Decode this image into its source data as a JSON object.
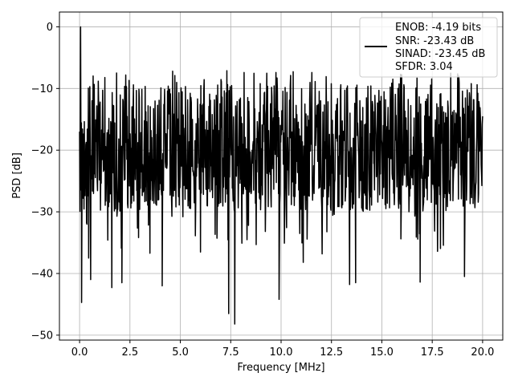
{
  "chart_data": {
    "type": "line",
    "title": "",
    "xlabel": "Frequency [MHz]",
    "ylabel": "PSD [dB]",
    "xlim": [
      -1.0,
      21.0
    ],
    "ylim": [
      -50.8,
      2.4
    ],
    "xticks": [
      0.0,
      2.5,
      5.0,
      7.5,
      10.0,
      12.5,
      15.0,
      17.5,
      20.0
    ],
    "xtick_labels": [
      "0.0",
      "2.5",
      "5.0",
      "7.5",
      "10.0",
      "12.5",
      "15.0",
      "17.5",
      "20.0"
    ],
    "yticks": [
      0,
      -10,
      -20,
      -30,
      -40,
      -50
    ],
    "ytick_labels": [
      "0",
      "−10",
      "−20",
      "−30",
      "−40",
      "−50"
    ],
    "grid": true,
    "legend": {
      "position": "upper-right",
      "entries": [
        "ENOB: -4.19 bits",
        "SNR: -23.43 dB",
        "SINAD: -23.45 dB",
        "SFDR: 3.04"
      ]
    },
    "series": [
      {
        "color": "#000000",
        "description": "dense noisy power spectral density trace",
        "x_range": [
          0.0,
          20.0
        ],
        "typical_band_db": [
          -30,
          -9
        ],
        "peak": {
          "x": 0.05,
          "y": 0.0
        },
        "notable_dips": [
          {
            "x": 0.1,
            "y": -44.7
          },
          {
            "x": 0.45,
            "y": -37.5
          },
          {
            "x": 0.55,
            "y": -41.0
          },
          {
            "x": 1.6,
            "y": -42.3
          },
          {
            "x": 2.1,
            "y": -41.5
          },
          {
            "x": 4.1,
            "y": -42.0
          },
          {
            "x": 7.4,
            "y": -46.5
          },
          {
            "x": 7.7,
            "y": -48.2
          },
          {
            "x": 9.9,
            "y": -44.2
          },
          {
            "x": 11.1,
            "y": -38.2
          },
          {
            "x": 13.4,
            "y": -41.8
          },
          {
            "x": 13.7,
            "y": -41.5
          },
          {
            "x": 16.9,
            "y": -41.4
          },
          {
            "x": 19.1,
            "y": -40.5
          }
        ]
      }
    ]
  }
}
